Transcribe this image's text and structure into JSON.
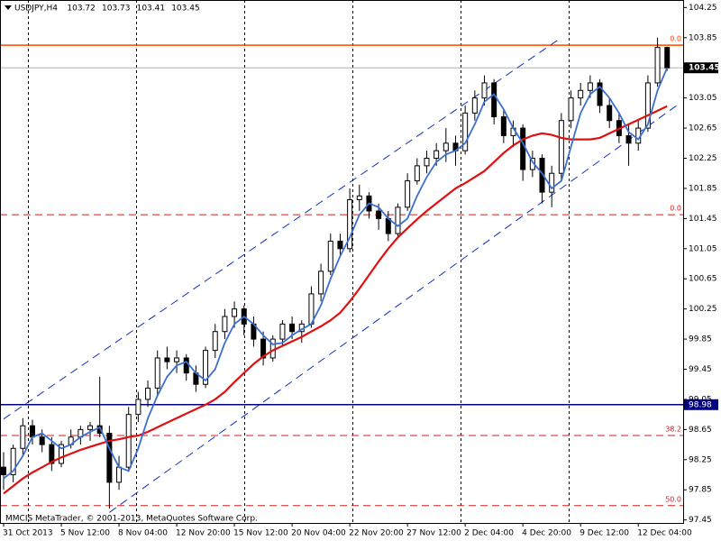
{
  "chart_data": {
    "type": "candlestick",
    "title": "USDJPY,H4",
    "footer": "MMCIS MetaTrader, © 2001-2013, MetaQuotes Software Corp.",
    "categories": [
      "31 Oct 2013",
      null,
      null,
      null,
      null,
      null,
      "5 Nov 12:00",
      null,
      null,
      null,
      null,
      null,
      "8 Nov 04:00",
      null,
      null,
      null,
      null,
      null,
      "12 Nov 20:00",
      null,
      null,
      null,
      null,
      null,
      "15 Nov 12:00",
      null,
      null,
      null,
      null,
      null,
      "20 Nov 04:00",
      null,
      null,
      null,
      null,
      null,
      "22 Nov 20:00",
      null,
      null,
      null,
      null,
      null,
      "27 Nov 12:00",
      null,
      null,
      null,
      null,
      null,
      "2 Dec 04:00",
      null,
      null,
      null,
      null,
      null,
      "4 Dec 20:00",
      null,
      null,
      null,
      null,
      null,
      "9 Dec 12:00",
      null,
      null,
      null,
      null,
      null,
      "12 Dec 04:00",
      null,
      null,
      null
    ],
    "ohlc": [
      [
        98.15,
        98.35,
        97.85,
        98.05
      ],
      [
        98.05,
        98.45,
        97.95,
        98.4
      ],
      [
        98.4,
        98.8,
        98.3,
        98.7
      ],
      [
        98.7,
        98.78,
        98.45,
        98.55
      ],
      [
        98.55,
        98.65,
        98.35,
        98.45
      ],
      [
        98.45,
        98.55,
        98.1,
        98.2
      ],
      [
        98.2,
        98.5,
        98.15,
        98.45
      ],
      [
        98.45,
        98.65,
        98.4,
        98.55
      ],
      [
        98.55,
        98.7,
        98.45,
        98.65
      ],
      [
        98.65,
        98.75,
        98.5,
        98.7
      ],
      [
        98.7,
        99.35,
        98.55,
        98.6
      ],
      [
        98.6,
        98.7,
        97.6,
        97.95
      ],
      [
        97.95,
        98.3,
        97.85,
        98.15
      ],
      [
        98.15,
        98.95,
        98.1,
        98.85
      ],
      [
        98.85,
        99.15,
        98.75,
        99.05
      ],
      [
        99.05,
        99.3,
        98.95,
        99.2
      ],
      [
        99.2,
        99.7,
        99.1,
        99.6
      ],
      [
        99.6,
        99.75,
        99.45,
        99.55
      ],
      [
        99.55,
        99.7,
        99.4,
        99.6
      ],
      [
        99.6,
        99.65,
        99.3,
        99.4
      ],
      [
        99.4,
        99.5,
        99.15,
        99.25
      ],
      [
        99.25,
        99.75,
        99.2,
        99.7
      ],
      [
        99.7,
        100.05,
        99.6,
        99.95
      ],
      [
        99.95,
        100.25,
        99.85,
        100.15
      ],
      [
        100.15,
        100.35,
        100.0,
        100.25
      ],
      [
        100.25,
        100.3,
        99.9,
        100.05
      ],
      [
        100.05,
        100.15,
        99.75,
        99.85
      ],
      [
        99.85,
        99.95,
        99.5,
        99.6
      ],
      [
        99.6,
        99.9,
        99.55,
        99.85
      ],
      [
        99.85,
        100.1,
        99.75,
        100.05
      ],
      [
        100.05,
        100.15,
        99.85,
        99.95
      ],
      [
        99.95,
        100.1,
        99.8,
        100.05
      ],
      [
        100.05,
        100.55,
        100.0,
        100.45
      ],
      [
        100.45,
        100.85,
        100.35,
        100.75
      ],
      [
        100.75,
        101.25,
        100.7,
        101.15
      ],
      [
        101.15,
        101.25,
        100.95,
        101.05
      ],
      [
        101.05,
        101.85,
        101.0,
        101.7
      ],
      [
        101.7,
        101.9,
        101.55,
        101.75
      ],
      [
        101.75,
        101.8,
        101.45,
        101.55
      ],
      [
        101.55,
        101.65,
        101.3,
        101.45
      ],
      [
        101.45,
        101.55,
        101.15,
        101.25
      ],
      [
        101.25,
        101.65,
        101.2,
        101.6
      ],
      [
        101.6,
        102.05,
        101.55,
        101.95
      ],
      [
        101.95,
        102.25,
        101.9,
        102.15
      ],
      [
        102.15,
        102.35,
        102.05,
        102.25
      ],
      [
        102.25,
        102.45,
        102.15,
        102.35
      ],
      [
        102.35,
        102.65,
        102.2,
        102.45
      ],
      [
        102.45,
        102.55,
        102.15,
        102.35
      ],
      [
        102.35,
        102.95,
        102.3,
        102.85
      ],
      [
        102.85,
        103.15,
        102.75,
        103.05
      ],
      [
        103.05,
        103.35,
        102.95,
        103.25
      ],
      [
        103.25,
        103.3,
        102.7,
        102.8
      ],
      [
        102.8,
        102.9,
        102.45,
        102.55
      ],
      [
        102.55,
        102.75,
        102.4,
        102.65
      ],
      [
        102.65,
        102.7,
        101.95,
        102.1
      ],
      [
        102.1,
        102.35,
        102.0,
        102.25
      ],
      [
        102.25,
        102.3,
        101.65,
        101.8
      ],
      [
        101.8,
        102.15,
        101.6,
        102.05
      ],
      [
        102.05,
        102.85,
        101.95,
        102.75
      ],
      [
        102.75,
        103.15,
        102.65,
        103.05
      ],
      [
        103.05,
        103.25,
        102.95,
        103.15
      ],
      [
        103.15,
        103.35,
        103.05,
        103.25
      ],
      [
        103.25,
        103.3,
        102.85,
        102.95
      ],
      [
        102.95,
        103.05,
        102.65,
        102.75
      ],
      [
        102.75,
        102.85,
        102.45,
        102.55
      ],
      [
        102.55,
        102.7,
        102.15,
        102.45
      ],
      [
        102.45,
        102.75,
        102.35,
        102.65
      ],
      [
        102.65,
        103.35,
        102.6,
        103.25
      ],
      [
        103.25,
        103.85,
        103.2,
        103.72
      ],
      [
        103.72,
        103.73,
        103.41,
        103.45
      ]
    ],
    "series": [
      {
        "color": "#e01010",
        "values": [
          97.8,
          97.9,
          98.0,
          98.08,
          98.15,
          98.22,
          98.28,
          98.33,
          98.38,
          98.42,
          98.46,
          98.5,
          98.52,
          98.55,
          98.57,
          98.62,
          98.68,
          98.74,
          98.8,
          98.86,
          98.92,
          98.98,
          99.05,
          99.15,
          99.28,
          99.4,
          99.52,
          99.62,
          99.7,
          99.76,
          99.82,
          99.88,
          99.95,
          100.02,
          100.1,
          100.2,
          100.35,
          100.52,
          100.7,
          100.88,
          101.05,
          101.2,
          101.32,
          101.44,
          101.55,
          101.65,
          101.75,
          101.85,
          101.92,
          102.0,
          102.08,
          102.2,
          102.32,
          102.42,
          102.5,
          102.55,
          102.58,
          102.56,
          102.52,
          102.5,
          102.5,
          102.5,
          102.52,
          102.58,
          102.64,
          102.7,
          102.76,
          102.82,
          102.88,
          102.94
        ]
      },
      {
        "color": "#3a6fd0",
        "values": [
          98.0,
          98.1,
          98.3,
          98.55,
          98.6,
          98.5,
          98.4,
          98.45,
          98.55,
          98.62,
          98.68,
          98.4,
          98.15,
          98.1,
          98.4,
          98.8,
          99.1,
          99.35,
          99.5,
          99.55,
          99.4,
          99.3,
          99.45,
          99.8,
          100.05,
          100.15,
          100.05,
          99.9,
          99.78,
          99.8,
          99.9,
          99.98,
          100.05,
          100.3,
          100.65,
          100.95,
          101.2,
          101.5,
          101.65,
          101.6,
          101.45,
          101.35,
          101.45,
          101.75,
          102.0,
          102.2,
          102.3,
          102.35,
          102.45,
          102.7,
          103.0,
          103.1,
          102.9,
          102.65,
          102.45,
          102.2,
          102.05,
          101.85,
          101.95,
          102.4,
          102.85,
          103.1,
          103.2,
          103.05,
          102.85,
          102.6,
          102.5,
          102.7,
          103.15,
          103.45
        ]
      }
    ],
    "channel": [
      {
        "x": [
          0,
          58
        ],
        "y": [
          98.79,
          103.85
        ]
      },
      {
        "x": [
          11,
          70
        ],
        "y": [
          97.55,
          102.95
        ]
      }
    ],
    "levels": [
      {
        "value": 103.75,
        "label": "0.0",
        "color": "#ff4500",
        "style": "solid"
      },
      {
        "value": 101.5,
        "label": "0.0",
        "color": "#d02020",
        "style": "dashed"
      },
      {
        "value": 98.57,
        "label": "38.2",
        "color": "#d02020",
        "style": "dashed"
      },
      {
        "value": 97.64,
        "label": "50.0",
        "color": "#d02020",
        "style": "dashed"
      }
    ],
    "hline": {
      "value": 98.98,
      "color": "#000080"
    },
    "ylim": [
      97.41,
      104.35
    ],
    "yticks": [
      104.25,
      103.85,
      103.45,
      103.05,
      102.65,
      102.25,
      101.85,
      101.45,
      101.05,
      100.65,
      100.25,
      99.85,
      99.45,
      99.05,
      98.65,
      98.25,
      97.85,
      97.45
    ]
  }
}
